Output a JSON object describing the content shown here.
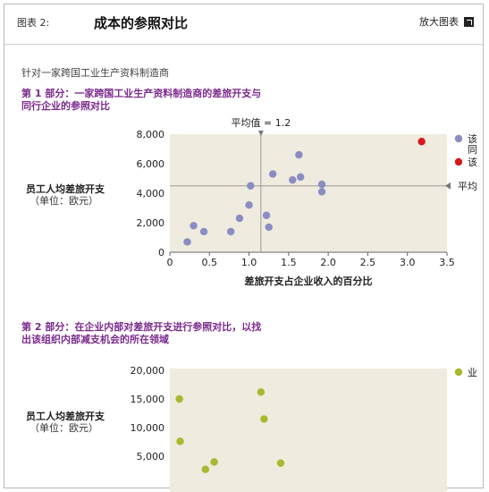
{
  "header": {
    "figure_label": "图表 2:",
    "title": "成本的参照对比",
    "enlarge_label": "放大图表"
  },
  "subtitle": "针对一家跨国工业生产资料制造商",
  "section1": {
    "title_line1": "第 1 部分：一家跨国工业生产资料制造商的差旅开支与",
    "title_line2": "同行企业的参照对比"
  },
  "section2": {
    "title_line1": "第 2 部分：在企业内部对差旅开支进行参照对比，以找",
    "title_line2": "出该组织内部减支机会的所在领域"
  },
  "colors": {
    "plot_bg": "#efebde",
    "peer": "#8a8cc4",
    "company": "#d7191c",
    "unit": "#a9b82e",
    "section": "#7b2a8d"
  },
  "chart_data": [
    {
      "type": "scatter",
      "title": "",
      "xlabel": "差旅开支占企业收入的百分比",
      "ylabel": "员工人均差旅开支",
      "ylabel_unit": "（单位：欧元）",
      "xlim": [
        0,
        3.5
      ],
      "ylim": [
        0,
        8000
      ],
      "xticks": [
        0,
        0.5,
        1.0,
        1.5,
        2.0,
        2.5,
        3.0,
        3.5
      ],
      "xtick_labels": [
        "0",
        "0.5",
        "1.0",
        "1.5",
        "2.0",
        "2.5",
        "3.0",
        "3.5"
      ],
      "yticks": [
        0,
        2000,
        4000,
        6000,
        8000
      ],
      "ytick_labels": [
        "0",
        "2,000",
        "4,000",
        "6,000",
        "8,000"
      ],
      "reference_lines": {
        "x_label": "平均值 = 1.2",
        "x": 1.15,
        "y_label": "平均",
        "y": 4500
      },
      "legend": [
        "该",
        "同",
        "该"
      ],
      "series": [
        {
          "role": "peer",
          "points": [
            [
              0.22,
              700
            ],
            [
              0.3,
              1800
            ],
            [
              0.43,
              1400
            ],
            [
              0.77,
              1400
            ],
            [
              0.88,
              2300
            ],
            [
              1.0,
              3200
            ],
            [
              1.02,
              4500
            ],
            [
              1.22,
              2500
            ],
            [
              1.25,
              1700
            ],
            [
              1.3,
              5300
            ],
            [
              1.55,
              4900
            ],
            [
              1.63,
              6600
            ],
            [
              1.65,
              5100
            ],
            [
              1.92,
              4600
            ],
            [
              1.92,
              4100
            ]
          ]
        },
        {
          "role": "company",
          "points": [
            [
              3.18,
              7500
            ]
          ]
        }
      ]
    },
    {
      "type": "scatter",
      "title": "",
      "ylabel": "员工人均差旅开支",
      "ylabel_unit": "（单位：欧元）",
      "ylim": [
        0,
        20000
      ],
      "yticks": [
        5000,
        10000,
        15000,
        20000
      ],
      "ytick_labels": [
        "5,000",
        "10,000",
        "15,000",
        "20,000"
      ],
      "legend": [
        "业"
      ],
      "series": [
        {
          "role": "unit",
          "points": [
            [
              0.12,
              15000
            ],
            [
              0.13,
              7600
            ],
            [
              0.45,
              2700
            ],
            [
              0.56,
              4000
            ],
            [
              1.15,
              16200
            ],
            [
              1.19,
              11500
            ],
            [
              1.4,
              3800
            ]
          ]
        }
      ]
    }
  ]
}
